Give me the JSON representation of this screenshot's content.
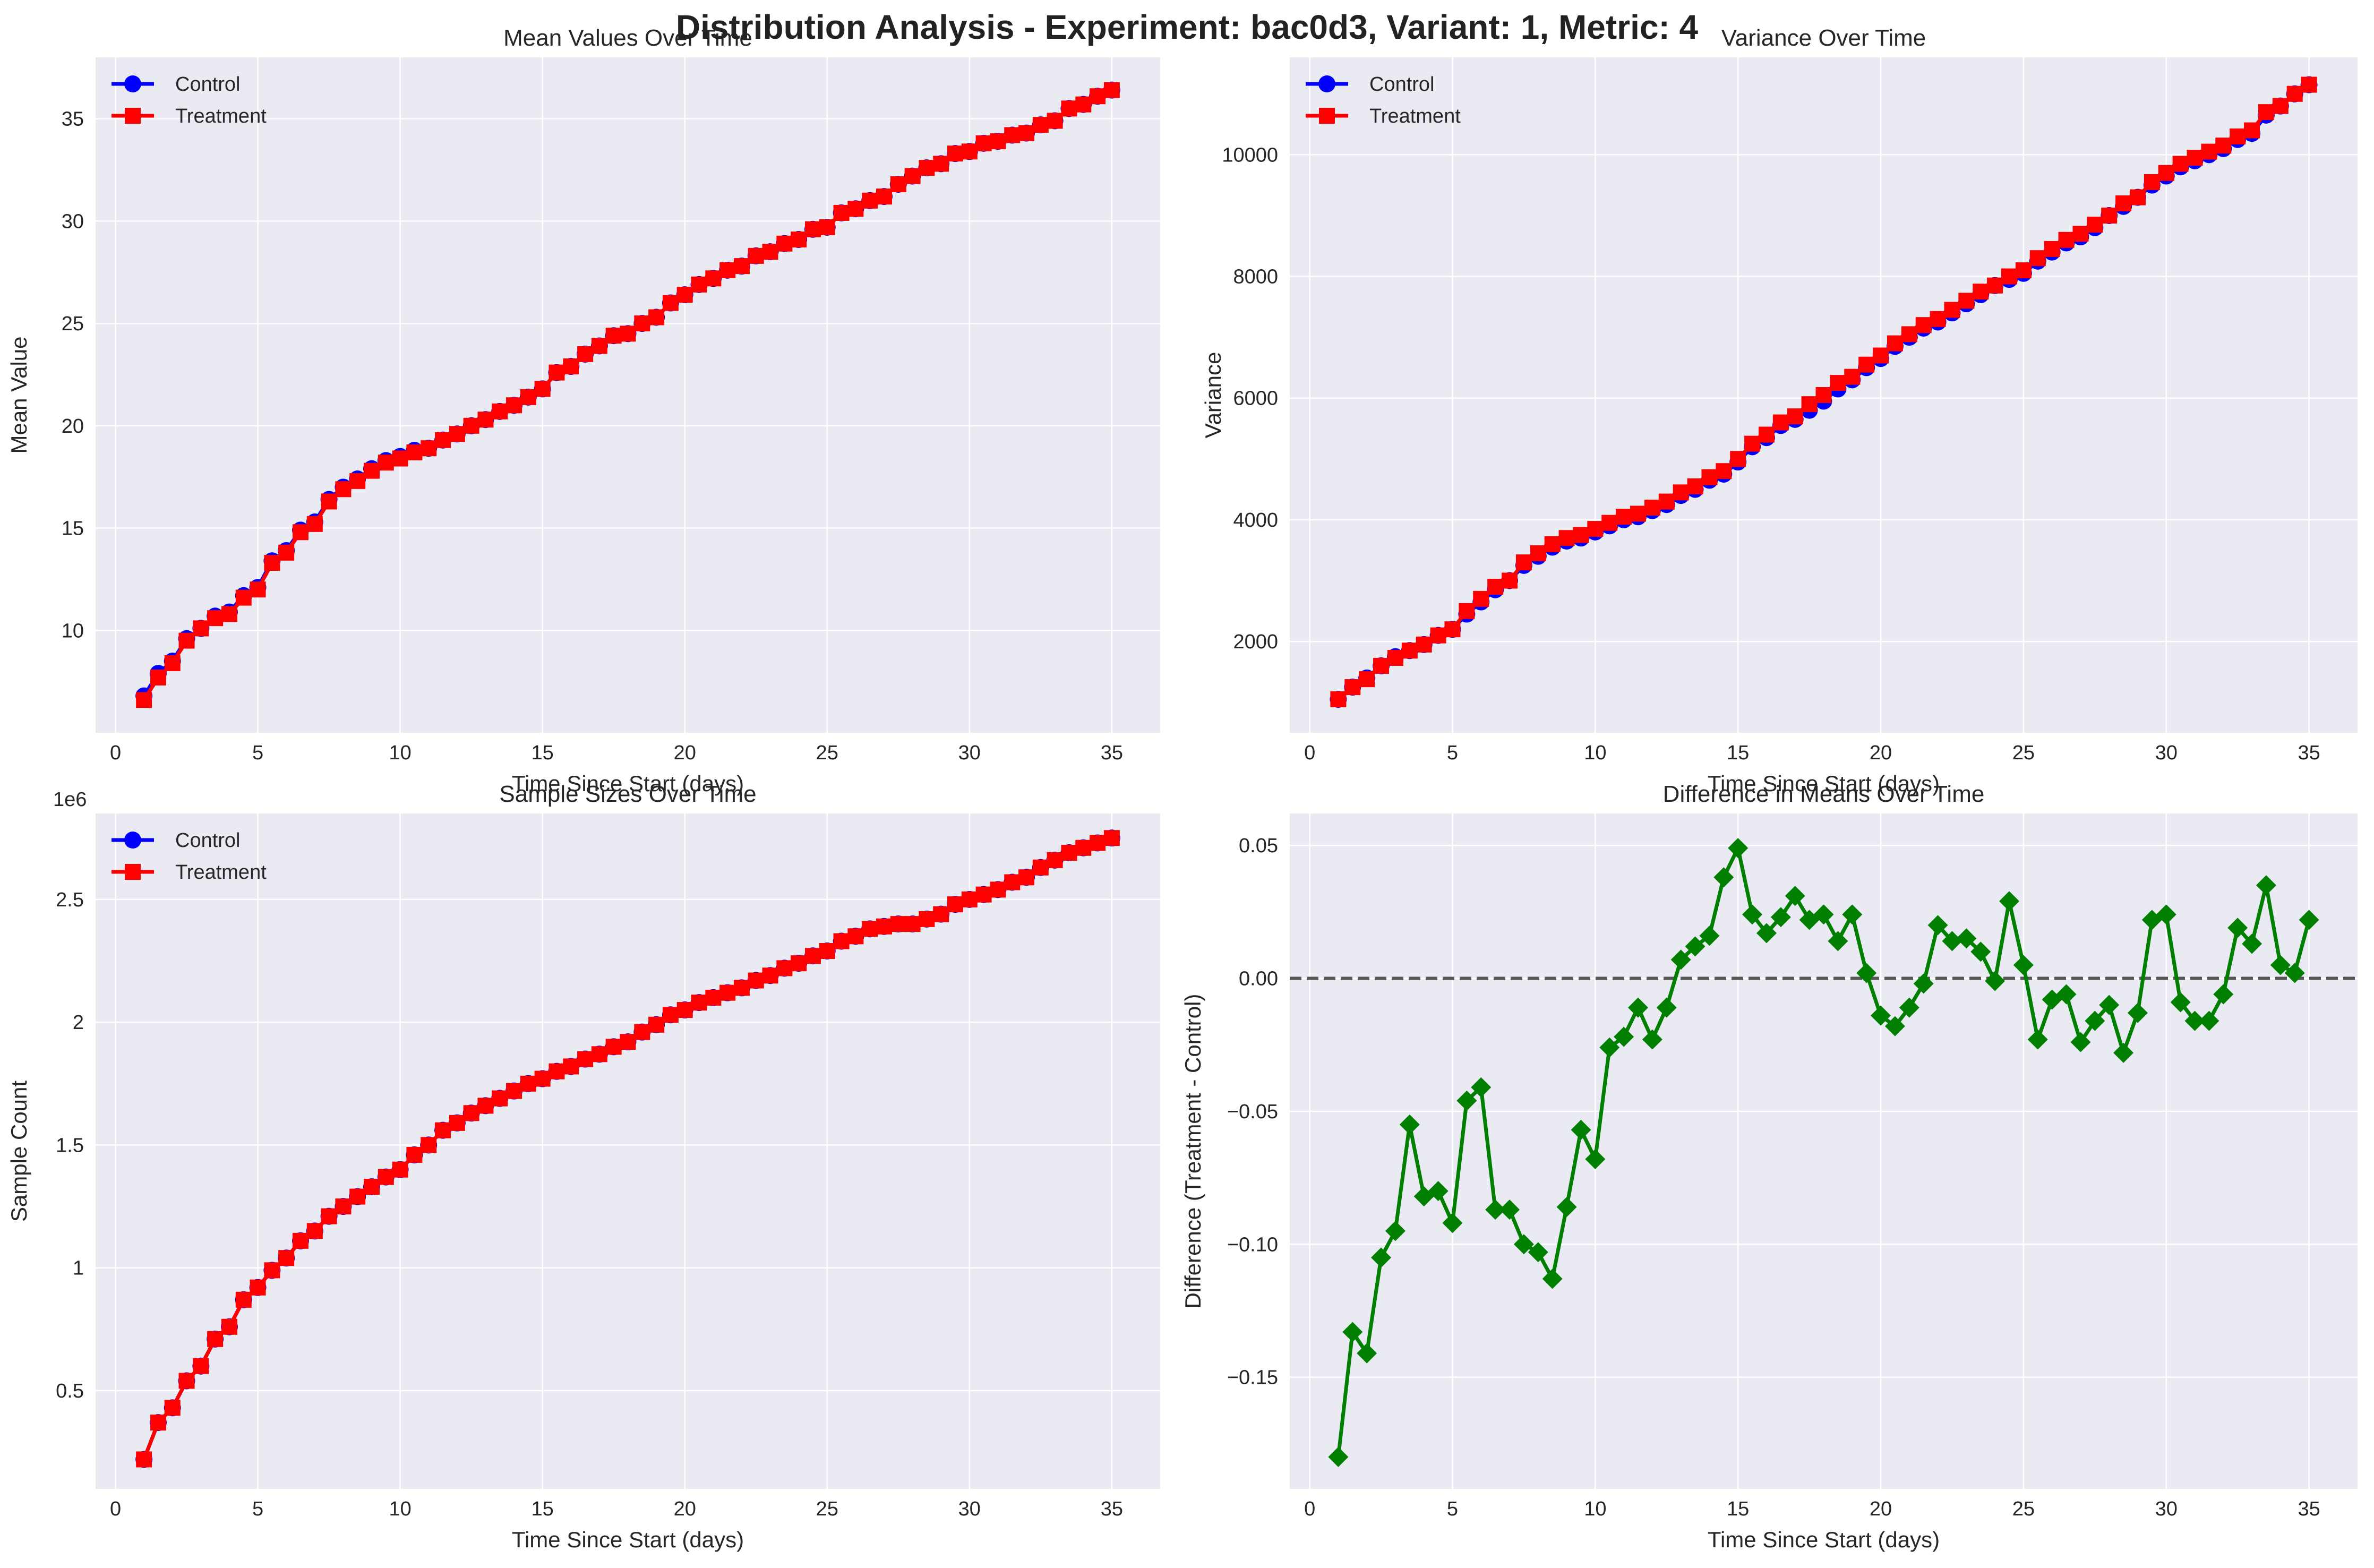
{
  "figure": {
    "title": "Distribution Analysis - Experiment: bac0d3, Variant: 1, Metric: 4"
  },
  "colors": {
    "control": "#0000ff",
    "treatment": "#ff0000",
    "difference": "#007f00",
    "zero_line": "#555555",
    "axes_bg": "#eaeaf2",
    "grid": "#ffffff"
  },
  "chart_data": [
    {
      "type": "line",
      "title": "Mean Values Over Time",
      "xlabel": "Time Since Start (days)",
      "ylabel": "Mean Value",
      "xlim": [
        -0.7,
        36.7
      ],
      "ylim": [
        5.0,
        38.0
      ],
      "xticks": [
        0,
        5,
        10,
        15,
        20,
        25,
        30,
        35
      ],
      "yticks": [
        10,
        15,
        20,
        25,
        30,
        35
      ],
      "grid": true,
      "legend": "upper-left",
      "x": [
        1,
        1.5,
        2,
        2.5,
        3,
        3.5,
        4,
        4.5,
        5,
        5.5,
        6,
        6.5,
        7,
        7.5,
        8,
        8.5,
        9,
        9.5,
        10,
        10.5,
        11,
        11.5,
        12,
        12.5,
        13,
        13.5,
        14,
        14.5,
        15,
        15.5,
        16,
        16.5,
        17,
        17.5,
        18,
        18.5,
        19,
        19.5,
        20,
        20.5,
        21,
        21.5,
        22,
        22.5,
        23,
        23.5,
        24,
        24.5,
        25,
        25.5,
        26,
        26.5,
        27,
        27.5,
        28,
        28.5,
        29,
        29.5,
        30,
        30.5,
        31,
        31.5,
        32,
        32.5,
        33,
        33.5,
        34,
        34.5,
        35
      ],
      "series": [
        {
          "name": "Control",
          "color": "#0000ff",
          "marker": "circle",
          "values": [
            6.8,
            7.9,
            8.5,
            9.6,
            10.1,
            10.7,
            10.9,
            11.7,
            12.1,
            13.4,
            13.9,
            14.9,
            15.3,
            16.4,
            17.0,
            17.4,
            17.9,
            18.3,
            18.5,
            18.8,
            18.9,
            19.3,
            19.6,
            20.0,
            20.3,
            20.7,
            21.0,
            21.4,
            21.8,
            22.6,
            22.9,
            23.5,
            23.9,
            24.4,
            24.5,
            25.0,
            25.3,
            26.0,
            26.4,
            26.9,
            27.2,
            27.6,
            27.8,
            28.3,
            28.5,
            28.9,
            29.1,
            29.6,
            29.7,
            30.4,
            30.6,
            31.0,
            31.2,
            31.8,
            32.2,
            32.6,
            32.8,
            33.3,
            33.4,
            33.8,
            33.9,
            34.2,
            34.3,
            34.7,
            34.9,
            35.5,
            35.7,
            36.1,
            36.4
          ]
        },
        {
          "name": "Treatment",
          "color": "#ff0000",
          "marker": "square",
          "values": [
            6.6,
            7.7,
            8.4,
            9.5,
            10.1,
            10.6,
            10.8,
            11.6,
            12.0,
            13.3,
            13.8,
            14.8,
            15.2,
            16.3,
            16.9,
            17.3,
            17.8,
            18.2,
            18.4,
            18.7,
            18.9,
            19.3,
            19.6,
            20.0,
            20.3,
            20.7,
            21.0,
            21.4,
            21.8,
            22.6,
            22.9,
            23.5,
            23.9,
            24.4,
            24.5,
            25.0,
            25.3,
            26.0,
            26.4,
            26.9,
            27.2,
            27.6,
            27.8,
            28.3,
            28.5,
            28.9,
            29.1,
            29.6,
            29.7,
            30.4,
            30.6,
            31.0,
            31.2,
            31.8,
            32.2,
            32.6,
            32.8,
            33.3,
            33.4,
            33.8,
            33.9,
            34.2,
            34.3,
            34.7,
            34.9,
            35.5,
            35.7,
            36.1,
            36.4
          ]
        }
      ]
    },
    {
      "type": "line",
      "title": "Variance Over Time",
      "xlabel": "Time Since Start (days)",
      "ylabel": "Variance",
      "xlim": [
        -0.7,
        36.7
      ],
      "ylim": [
        500,
        11600
      ],
      "xticks": [
        0,
        5,
        10,
        15,
        20,
        25,
        30,
        35
      ],
      "yticks": [
        2000,
        4000,
        6000,
        8000,
        10000
      ],
      "grid": true,
      "legend": "upper-left",
      "x": [
        1,
        1.5,
        2,
        2.5,
        3,
        3.5,
        4,
        4.5,
        5,
        5.5,
        6,
        6.5,
        7,
        7.5,
        8,
        8.5,
        9,
        9.5,
        10,
        10.5,
        11,
        11.5,
        12,
        12.5,
        13,
        13.5,
        14,
        14.5,
        15,
        15.5,
        16,
        16.5,
        17,
        17.5,
        18,
        18.5,
        19,
        19.5,
        20,
        20.5,
        21,
        21.5,
        22,
        22.5,
        23,
        23.5,
        24,
        24.5,
        25,
        25.5,
        26,
        26.5,
        27,
        27.5,
        28,
        28.5,
        29,
        29.5,
        30,
        30.5,
        31,
        31.5,
        32,
        32.5,
        33,
        33.5,
        34,
        34.5,
        35
      ],
      "series": [
        {
          "name": "Control",
          "color": "#0000ff",
          "marker": "circle",
          "values": [
            1050,
            1250,
            1400,
            1600,
            1750,
            1850,
            1950,
            2100,
            2200,
            2450,
            2650,
            2850,
            3000,
            3250,
            3400,
            3550,
            3650,
            3700,
            3800,
            3900,
            4000,
            4050,
            4150,
            4250,
            4400,
            4500,
            4650,
            4750,
            4950,
            5200,
            5350,
            5550,
            5650,
            5800,
            5950,
            6150,
            6300,
            6500,
            6650,
            6850,
            7000,
            7150,
            7250,
            7400,
            7550,
            7700,
            7850,
            7950,
            8050,
            8250,
            8400,
            8550,
            8650,
            8800,
            9000,
            9150,
            9300,
            9500,
            9650,
            9800,
            9900,
            10000,
            10100,
            10250,
            10350,
            10650,
            10800,
            11000,
            11150
          ]
        },
        {
          "name": "Treatment",
          "color": "#ff0000",
          "marker": "square",
          "values": [
            1050,
            1250,
            1380,
            1600,
            1730,
            1850,
            1950,
            2100,
            2200,
            2500,
            2700,
            2900,
            3000,
            3300,
            3450,
            3600,
            3700,
            3750,
            3850,
            3950,
            4050,
            4100,
            4200,
            4300,
            4450,
            4550,
            4700,
            4800,
            5000,
            5250,
            5400,
            5600,
            5700,
            5900,
            6050,
            6250,
            6350,
            6550,
            6700,
            6900,
            7050,
            7200,
            7300,
            7450,
            7600,
            7750,
            7850,
            8000,
            8100,
            8300,
            8450,
            8600,
            8700,
            8850,
            9000,
            9200,
            9300,
            9550,
            9700,
            9850,
            9950,
            10050,
            10150,
            10300,
            10400,
            10700,
            10800,
            11000,
            11150
          ]
        }
      ]
    },
    {
      "type": "line",
      "title": "Sample Sizes Over Time",
      "xlabel": "Time Since Start (days)",
      "ylabel": "Sample Count",
      "offset_label": "1e6",
      "xlim": [
        -0.7,
        36.7
      ],
      "ylim": [
        0.1,
        2.85
      ],
      "xticks": [
        0,
        5,
        10,
        15,
        20,
        25,
        30,
        35
      ],
      "yticks": [
        0.5,
        1.0,
        1.5,
        2.0,
        2.5
      ],
      "grid": true,
      "legend": "upper-left",
      "x": [
        1,
        1.5,
        2,
        2.5,
        3,
        3.5,
        4,
        4.5,
        5,
        5.5,
        6,
        6.5,
        7,
        7.5,
        8,
        8.5,
        9,
        9.5,
        10,
        10.5,
        11,
        11.5,
        12,
        12.5,
        13,
        13.5,
        14,
        14.5,
        15,
        15.5,
        16,
        16.5,
        17,
        17.5,
        18,
        18.5,
        19,
        19.5,
        20,
        20.5,
        21,
        21.5,
        22,
        22.5,
        23,
        23.5,
        24,
        24.5,
        25,
        25.5,
        26,
        26.5,
        27,
        27.5,
        28,
        28.5,
        29,
        29.5,
        30,
        30.5,
        31,
        31.5,
        32,
        32.5,
        33,
        33.5,
        34,
        34.5,
        35
      ],
      "series": [
        {
          "name": "Control",
          "color": "#0000ff",
          "marker": "circle",
          "values": [
            0.22,
            0.37,
            0.43,
            0.54,
            0.6,
            0.71,
            0.76,
            0.87,
            0.92,
            0.99,
            1.04,
            1.11,
            1.15,
            1.21,
            1.25,
            1.29,
            1.33,
            1.37,
            1.4,
            1.46,
            1.5,
            1.56,
            1.59,
            1.63,
            1.66,
            1.69,
            1.72,
            1.75,
            1.77,
            1.8,
            1.82,
            1.85,
            1.87,
            1.9,
            1.92,
            1.96,
            1.99,
            2.03,
            2.05,
            2.08,
            2.1,
            2.12,
            2.14,
            2.17,
            2.19,
            2.22,
            2.24,
            2.27,
            2.29,
            2.33,
            2.35,
            2.38,
            2.39,
            2.4,
            2.4,
            2.42,
            2.44,
            2.48,
            2.5,
            2.52,
            2.54,
            2.57,
            2.59,
            2.63,
            2.66,
            2.69,
            2.71,
            2.73,
            2.75
          ]
        },
        {
          "name": "Treatment",
          "color": "#ff0000",
          "marker": "square",
          "values": [
            0.22,
            0.37,
            0.43,
            0.54,
            0.6,
            0.71,
            0.76,
            0.87,
            0.92,
            0.99,
            1.04,
            1.11,
            1.15,
            1.21,
            1.25,
            1.29,
            1.33,
            1.37,
            1.4,
            1.46,
            1.5,
            1.56,
            1.59,
            1.63,
            1.66,
            1.69,
            1.72,
            1.75,
            1.77,
            1.8,
            1.82,
            1.85,
            1.87,
            1.9,
            1.92,
            1.96,
            1.99,
            2.03,
            2.05,
            2.08,
            2.1,
            2.12,
            2.14,
            2.17,
            2.19,
            2.22,
            2.24,
            2.27,
            2.29,
            2.33,
            2.35,
            2.38,
            2.39,
            2.4,
            2.4,
            2.42,
            2.44,
            2.48,
            2.5,
            2.52,
            2.54,
            2.57,
            2.59,
            2.63,
            2.66,
            2.69,
            2.71,
            2.73,
            2.75
          ]
        }
      ]
    },
    {
      "type": "line",
      "title": "Difference in Means Over Time",
      "xlabel": "Time Since Start (days)",
      "ylabel": "Difference (Treatment - Control)",
      "xlim": [
        -0.7,
        36.7
      ],
      "ylim": [
        -0.192,
        0.062
      ],
      "xticks": [
        0,
        5,
        10,
        15,
        20,
        25,
        30,
        35
      ],
      "yticks": [
        -0.15,
        -0.1,
        -0.05,
        0.0,
        0.05
      ],
      "ytick_labels": [
        "−0.15",
        "−0.10",
        "−0.05",
        "0.00",
        "0.05"
      ],
      "reference_line": 0.0,
      "grid": true,
      "x": [
        1,
        1.5,
        2,
        2.5,
        3,
        3.5,
        4,
        4.5,
        5,
        5.5,
        6,
        6.5,
        7,
        7.5,
        8,
        8.5,
        9,
        9.5,
        10,
        10.5,
        11,
        11.5,
        12,
        12.5,
        13,
        13.5,
        14,
        14.5,
        15,
        15.5,
        16,
        16.5,
        17,
        17.5,
        18,
        18.5,
        19,
        19.5,
        20,
        20.5,
        21,
        21.5,
        22,
        22.5,
        23,
        23.5,
        24,
        24.5,
        25,
        25.5,
        26,
        26.5,
        27,
        27.5,
        28,
        28.5,
        29,
        29.5,
        30,
        30.5,
        31,
        31.5,
        32,
        32.5,
        33,
        33.5,
        34,
        34.5,
        35
      ],
      "series": [
        {
          "name": "",
          "color": "#007f00",
          "marker": "diamond",
          "values": [
            -0.18,
            -0.133,
            -0.141,
            -0.105,
            -0.095,
            -0.055,
            -0.082,
            -0.08,
            -0.092,
            -0.046,
            -0.041,
            -0.087,
            -0.087,
            -0.1,
            -0.103,
            -0.113,
            -0.086,
            -0.057,
            -0.068,
            -0.026,
            -0.022,
            -0.011,
            -0.023,
            -0.011,
            0.007,
            0.012,
            0.016,
            0.038,
            0.049,
            0.024,
            0.017,
            0.023,
            0.031,
            0.022,
            0.024,
            0.014,
            0.024,
            0.002,
            -0.014,
            -0.018,
            -0.011,
            -0.002,
            0.02,
            0.014,
            0.015,
            0.01,
            -0.001,
            0.029,
            0.005,
            -0.023,
            -0.008,
            -0.006,
            -0.024,
            -0.016,
            -0.01,
            -0.028,
            -0.013,
            0.022,
            0.024,
            -0.009,
            -0.016,
            -0.016,
            -0.006,
            0.019,
            0.013,
            0.035,
            0.005,
            0.002,
            0.022
          ]
        }
      ]
    }
  ]
}
